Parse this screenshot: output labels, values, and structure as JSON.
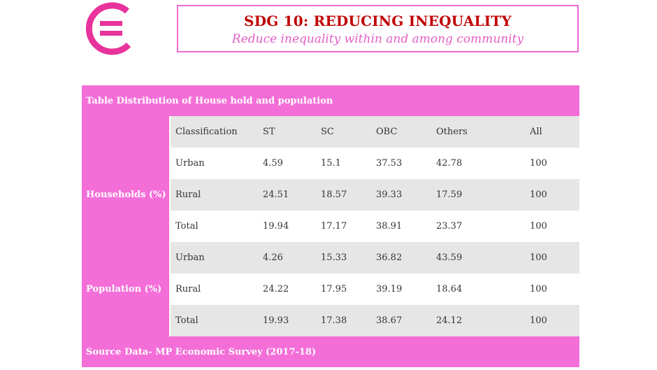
{
  "header": {
    "title": "SDG 10: REDUCING INEQUALITY",
    "subtitle": "Reduce inequality within and among community",
    "logo_icon": "equality-circle-icon",
    "accent": "#f46ed8",
    "title_color": "#c00000"
  },
  "table": {
    "caption": "Table Distribution of House hold and population",
    "columns": [
      "Classification",
      "ST",
      "SC",
      "OBC",
      "Others",
      "All"
    ],
    "groups": [
      {
        "label": "Households (%)",
        "rows": [
          [
            "Urban",
            "4.59",
            "15.1",
            "37.53",
            "42.78",
            "100"
          ],
          [
            "Rural",
            "24.51",
            "18.57",
            "39.33",
            "17.59",
            "100"
          ],
          [
            "Total",
            "19.94",
            "17.17",
            "38.91",
            "23.37",
            "100"
          ]
        ]
      },
      {
        "label": "Population (%)",
        "rows": [
          [
            "Urban",
            "4.26",
            "15.33",
            "36.82",
            "43.59",
            "100"
          ],
          [
            "Rural",
            "24.22",
            "17.95",
            "39.19",
            "18.64",
            "100"
          ],
          [
            "Total",
            "19.93",
            "17.38",
            "38.67",
            "24.12",
            "100"
          ]
        ]
      }
    ],
    "source": "Source Data- MP Economic Survey (2017-18)"
  }
}
